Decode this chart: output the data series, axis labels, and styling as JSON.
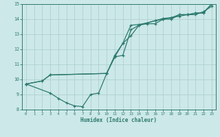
{
  "xlabel": "Humidex (Indice chaleur)",
  "bg_color": "#cce8e8",
  "grid_color": "#aacccc",
  "line_color": "#2d7a6e",
  "xlim": [
    -0.5,
    23.5
  ],
  "ylim": [
    8,
    15
  ],
  "xticks": [
    0,
    1,
    2,
    3,
    4,
    5,
    6,
    7,
    8,
    9,
    10,
    11,
    12,
    13,
    14,
    15,
    16,
    17,
    18,
    19,
    20,
    21,
    22,
    23
  ],
  "yticks": [
    8,
    9,
    10,
    11,
    12,
    13,
    14,
    15
  ],
  "line1_x": [
    0,
    2,
    3,
    10,
    11,
    12,
    13,
    14,
    15,
    16,
    17,
    18,
    19,
    20,
    21,
    22,
    23
  ],
  "line1_y": [
    9.7,
    9.9,
    10.3,
    10.4,
    11.5,
    11.6,
    13.3,
    13.6,
    13.75,
    13.9,
    14.0,
    14.1,
    14.2,
    14.3,
    14.3,
    14.5,
    14.85
  ],
  "line2_x": [
    0,
    2,
    3,
    10,
    11,
    12,
    13,
    14,
    15,
    16,
    17,
    18,
    19,
    20,
    21,
    22,
    23
  ],
  "line2_y": [
    9.7,
    9.9,
    10.3,
    10.4,
    11.5,
    12.4,
    13.6,
    13.65,
    13.75,
    13.9,
    14.05,
    14.1,
    14.3,
    14.3,
    14.4,
    14.45,
    15.0
  ],
  "line3_x": [
    0,
    3,
    4,
    5,
    6,
    7,
    8,
    9,
    10,
    11,
    12,
    13,
    14,
    15,
    16,
    17,
    18,
    19,
    20,
    21,
    22,
    23
  ],
  "line3_y": [
    9.7,
    9.1,
    8.75,
    8.45,
    8.25,
    8.2,
    9.0,
    9.1,
    10.4,
    11.6,
    12.4,
    12.9,
    13.6,
    13.7,
    13.7,
    14.0,
    14.0,
    14.3,
    14.3,
    14.4,
    14.4,
    15.0
  ]
}
